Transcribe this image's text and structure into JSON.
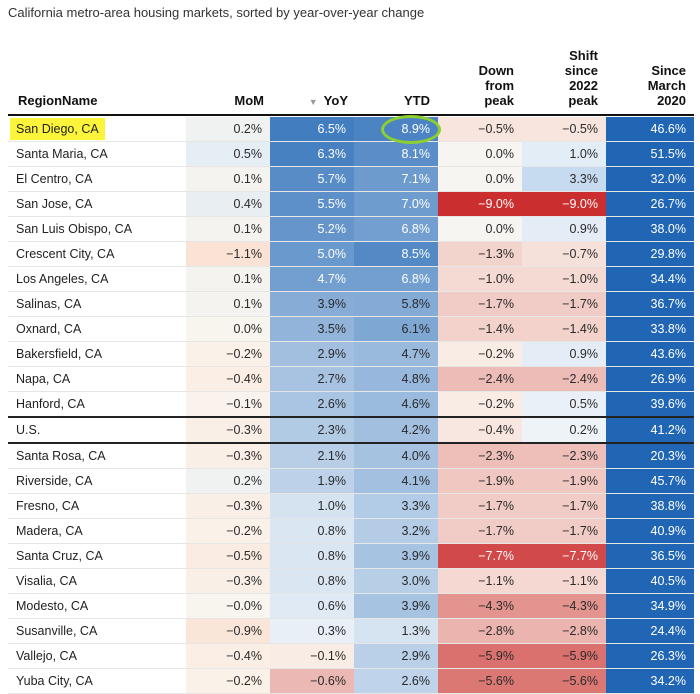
{
  "subtitle": "California metro-area housing markets, sorted by year-over-year change",
  "columns": [
    {
      "key": "name",
      "label": "RegionName"
    },
    {
      "key": "mom",
      "label": "MoM"
    },
    {
      "key": "yoy",
      "label": "YoY",
      "sort_icon": "sort-down-triangle-icon"
    },
    {
      "key": "ytd",
      "label": "YTD"
    },
    {
      "key": "down",
      "label": "Down from peak"
    },
    {
      "key": "shift",
      "label": "Shift since 2022 peak"
    },
    {
      "key": "since",
      "label": "Since March 2020"
    }
  ],
  "chart_data": {
    "type": "table",
    "title": "California metro-area housing markets, sorted by year-over-year change",
    "columns": [
      "RegionName",
      "MoM",
      "YoY",
      "YTD",
      "Down from peak",
      "Shift since 2022 peak",
      "Since March 2020"
    ],
    "rows": [
      [
        "San Diego, CA",
        "0.2%",
        "6.5%",
        "8.9%",
        "−0.5%",
        "−0.5%",
        "46.6%"
      ],
      [
        "Santa Maria, CA",
        "0.5%",
        "6.3%",
        "8.1%",
        "0.0%",
        "1.0%",
        "51.5%"
      ],
      [
        "El Centro, CA",
        "0.1%",
        "5.7%",
        "7.1%",
        "0.0%",
        "3.3%",
        "32.0%"
      ],
      [
        "San Jose, CA",
        "0.4%",
        "5.5%",
        "7.0%",
        "−9.0%",
        "−9.0%",
        "26.7%"
      ],
      [
        "San Luis Obispo, CA",
        "0.1%",
        "5.2%",
        "6.8%",
        "0.0%",
        "0.9%",
        "38.0%"
      ],
      [
        "Crescent City, CA",
        "−1.1%",
        "5.0%",
        "8.5%",
        "−1.3%",
        "−0.7%",
        "29.8%"
      ],
      [
        "Los Angeles, CA",
        "0.1%",
        "4.7%",
        "6.8%",
        "−1.0%",
        "−1.0%",
        "34.4%"
      ],
      [
        "Salinas, CA",
        "0.1%",
        "3.9%",
        "5.8%",
        "−1.7%",
        "−1.7%",
        "36.7%"
      ],
      [
        "Oxnard, CA",
        "0.0%",
        "3.5%",
        "6.1%",
        "−1.4%",
        "−1.4%",
        "33.8%"
      ],
      [
        "Bakersfield, CA",
        "−0.2%",
        "2.9%",
        "4.7%",
        "−0.2%",
        "0.9%",
        "43.6%"
      ],
      [
        "Napa, CA",
        "−0.4%",
        "2.7%",
        "4.8%",
        "−2.4%",
        "−2.4%",
        "26.9%"
      ],
      [
        "Hanford, CA",
        "−0.1%",
        "2.6%",
        "4.6%",
        "−0.2%",
        "0.5%",
        "39.6%"
      ],
      [
        "U.S.",
        "−0.3%",
        "2.3%",
        "4.2%",
        "−0.4%",
        "0.2%",
        "41.2%"
      ],
      [
        "Santa Rosa, CA",
        "−0.3%",
        "2.1%",
        "4.0%",
        "−2.3%",
        "−2.3%",
        "20.3%"
      ],
      [
        "Riverside, CA",
        "0.2%",
        "1.9%",
        "4.1%",
        "−1.9%",
        "−1.9%",
        "45.7%"
      ],
      [
        "Fresno, CA",
        "−0.3%",
        "1.0%",
        "3.3%",
        "−1.7%",
        "−1.7%",
        "38.8%"
      ],
      [
        "Madera, CA",
        "−0.2%",
        "0.8%",
        "3.2%",
        "−1.7%",
        "−1.7%",
        "40.9%"
      ],
      [
        "Santa Cruz, CA",
        "−0.5%",
        "0.8%",
        "3.9%",
        "−7.7%",
        "−7.7%",
        "36.5%"
      ],
      [
        "Visalia, CA",
        "−0.3%",
        "0.8%",
        "3.0%",
        "−1.1%",
        "−1.1%",
        "40.5%"
      ],
      [
        "Modesto, CA",
        "−0.0%",
        "0.6%",
        "3.9%",
        "−4.3%",
        "−4.3%",
        "34.9%"
      ],
      [
        "Susanville, CA",
        "−0.9%",
        "0.3%",
        "1.3%",
        "−2.8%",
        "−2.8%",
        "24.4%"
      ],
      [
        "Vallejo, CA",
        "−0.4%",
        "−0.1%",
        "2.9%",
        "−5.9%",
        "−5.9%",
        "26.3%"
      ],
      [
        "Yuba City, CA",
        "−0.2%",
        "−0.6%",
        "2.6%",
        "−5.6%",
        "−5.6%",
        "34.2%"
      ]
    ]
  }
}
